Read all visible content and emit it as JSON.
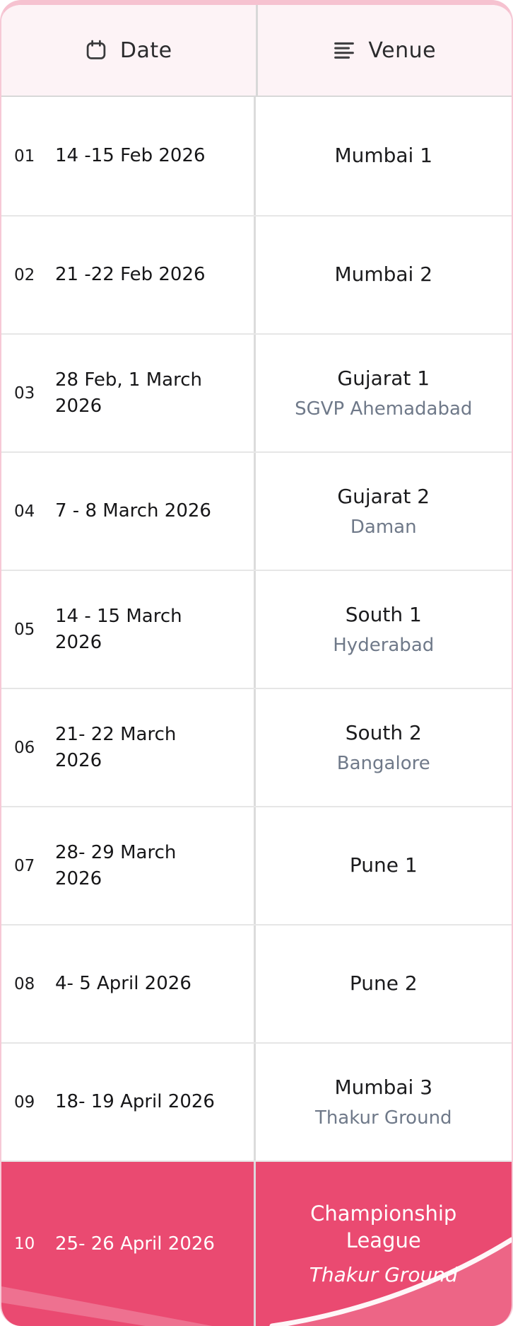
{
  "header": {
    "date_label": "Date",
    "venue_label": "Venue",
    "date_icon": "calendar-icon",
    "venue_icon": "list-icon"
  },
  "colors": {
    "accent_pink": "#EA4A71",
    "header_bg": "#FDF3F6",
    "border_pink": "#F6C9D6",
    "text_dark": "#1B1B1D",
    "subtitle_gray": "#6F7989",
    "divider_gray": "#DCDCDC",
    "highlight_text": "#FFFFFF"
  },
  "table": {
    "rows": [
      {
        "num": "01",
        "date_lines": [
          "14 -15 Feb 2026"
        ],
        "venue": "Mumbai 1",
        "venue_sub": "",
        "highlight": false
      },
      {
        "num": "02",
        "date_lines": [
          "21 -22 Feb 2026"
        ],
        "venue": "Mumbai 2",
        "venue_sub": "",
        "highlight": false
      },
      {
        "num": "03",
        "date_lines": [
          "28 Feb, 1 March",
          "2026"
        ],
        "venue": "Gujarat 1",
        "venue_sub": "SGVP Ahemadabad",
        "highlight": false
      },
      {
        "num": "04",
        "date_lines": [
          "7 - 8 March 2026"
        ],
        "venue": "Gujarat 2",
        "venue_sub": "Daman",
        "highlight": false
      },
      {
        "num": "05",
        "date_lines": [
          "14 - 15 March",
          "2026"
        ],
        "venue": "South 1",
        "venue_sub": "Hyderabad",
        "highlight": false
      },
      {
        "num": "06",
        "date_lines": [
          "21- 22 March",
          "2026"
        ],
        "venue": "South 2",
        "venue_sub": "Bangalore",
        "highlight": false
      },
      {
        "num": "07",
        "date_lines": [
          "28- 29 March",
          "2026"
        ],
        "venue": "Pune 1",
        "venue_sub": "",
        "highlight": false
      },
      {
        "num": "08",
        "date_lines": [
          "4- 5 April 2026"
        ],
        "venue": "Pune 2",
        "venue_sub": "",
        "highlight": false
      },
      {
        "num": "09",
        "date_lines": [
          "18- 19 April 2026"
        ],
        "venue": "Mumbai 3",
        "venue_sub": "Thakur Ground",
        "highlight": false
      },
      {
        "num": "10",
        "date_lines": [
          "25- 26 April 2026"
        ],
        "venue": "Championship League",
        "venue_sub": "Thakur Ground",
        "venue_sub_italic": true,
        "highlight": true
      }
    ]
  }
}
